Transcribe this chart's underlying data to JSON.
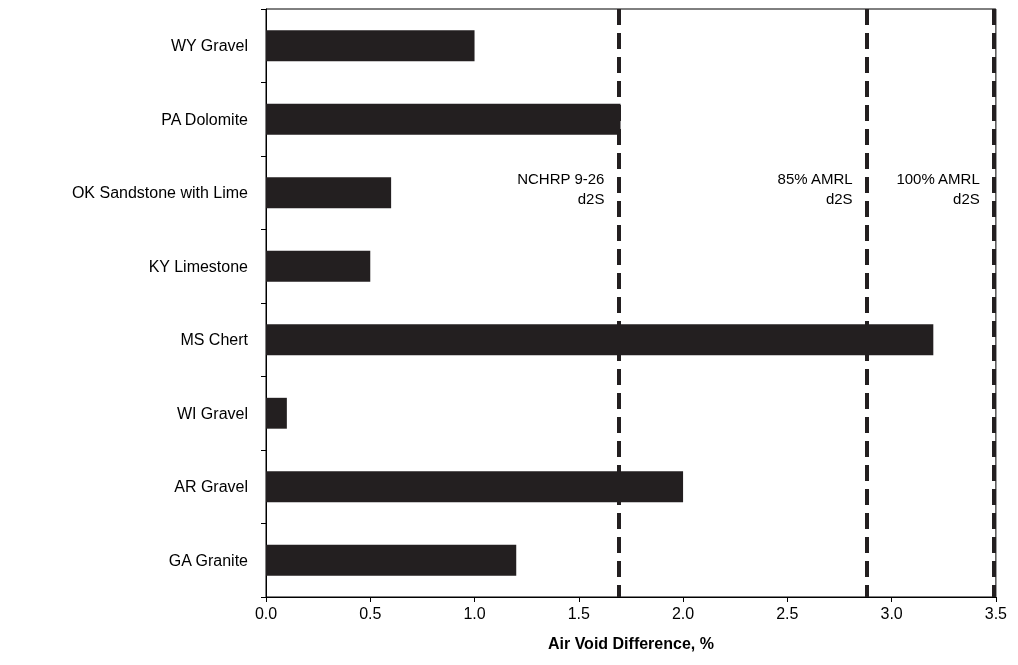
{
  "chart_data": {
    "type": "bar",
    "orientation": "horizontal",
    "xlabel": "Air Void Difference, %",
    "categories": [
      "WY Gravel",
      "PA Dolomite",
      "OK Sandstone with Lime",
      "KY Limestone",
      "MS Chert",
      "WI Gravel",
      "AR Gravel",
      "GA Granite"
    ],
    "values": [
      1.0,
      1.7,
      0.6,
      0.5,
      3.2,
      0.1,
      2.0,
      1.2
    ],
    "color": "#231f20",
    "xlim": [
      0,
      3.5
    ],
    "xticks": [
      {
        "value": 0,
        "label": "0.0"
      },
      0.5,
      {
        "value": 1,
        "label": "1.0"
      },
      1.5,
      {
        "value": 2,
        "label": "2.0"
      },
      2.5,
      {
        "value": 3,
        "label": "3.0"
      },
      3.5
    ],
    "ref_lines": [
      {
        "axis": "x",
        "value": 1.69,
        "label": "NCHRP 9-26\nd2S",
        "line_style": "dashed",
        "color": "#231f20"
      },
      {
        "axis": "x",
        "value": 2.88,
        "label": "85% AMRL\nd2S",
        "line_style": "dashed",
        "color": "#231f20"
      },
      {
        "axis": "x",
        "value": 3.49,
        "label": "100% AMRL\nd2S",
        "line_style": "dashed",
        "color": "#231f20"
      }
    ],
    "grid": false
  }
}
